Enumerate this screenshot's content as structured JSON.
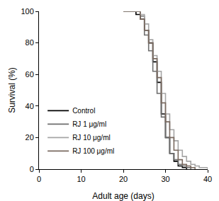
{
  "chart_data": {
    "type": "line",
    "line_style": "step",
    "x_label": "Adult age (days)",
    "y_label": "Survival (%)",
    "x": [
      20,
      21,
      22,
      23,
      24,
      25,
      26,
      27,
      28,
      29,
      30,
      31,
      32,
      33,
      34,
      35,
      36,
      37,
      38,
      39,
      40
    ],
    "series": [
      {
        "name": "Control",
        "color": "#000000",
        "values": [
          100,
          100,
          100,
          98,
          95,
          88,
          80,
          68,
          55,
          35,
          20,
          10,
          5,
          2,
          1,
          0,
          null,
          null,
          null,
          null,
          null
        ]
      },
      {
        "name": "RJ 1 μg/ml",
        "color": "#6e6e6e",
        "values": [
          100,
          100,
          100,
          100,
          97,
          85,
          75,
          62,
          48,
          33,
          20,
          10,
          6,
          3,
          2,
          1,
          0,
          null,
          null,
          null,
          null
        ]
      },
      {
        "name": "RJ 10 μg/ml",
        "color": "#a5a5a5",
        "values": [
          100,
          100,
          100,
          100,
          98,
          92,
          82,
          72,
          62,
          48,
          35,
          25,
          18,
          12,
          8,
          5,
          3,
          2,
          1,
          1,
          0
        ]
      },
      {
        "name": "RJ 100 μg/ml",
        "color": "#7a6a60",
        "values": [
          100,
          100,
          100,
          100,
          95,
          88,
          80,
          70,
          58,
          42,
          30,
          20,
          12,
          6,
          3,
          2,
          1,
          0,
          null,
          null,
          null
        ]
      }
    ],
    "xlim": [
      0,
      40
    ],
    "xticks": [
      0,
      10,
      20,
      30,
      40
    ],
    "ylim": [
      0,
      100
    ],
    "yticks": [
      0,
      20,
      40,
      60,
      80,
      100
    ],
    "grid": false,
    "legend": "bottom left"
  }
}
